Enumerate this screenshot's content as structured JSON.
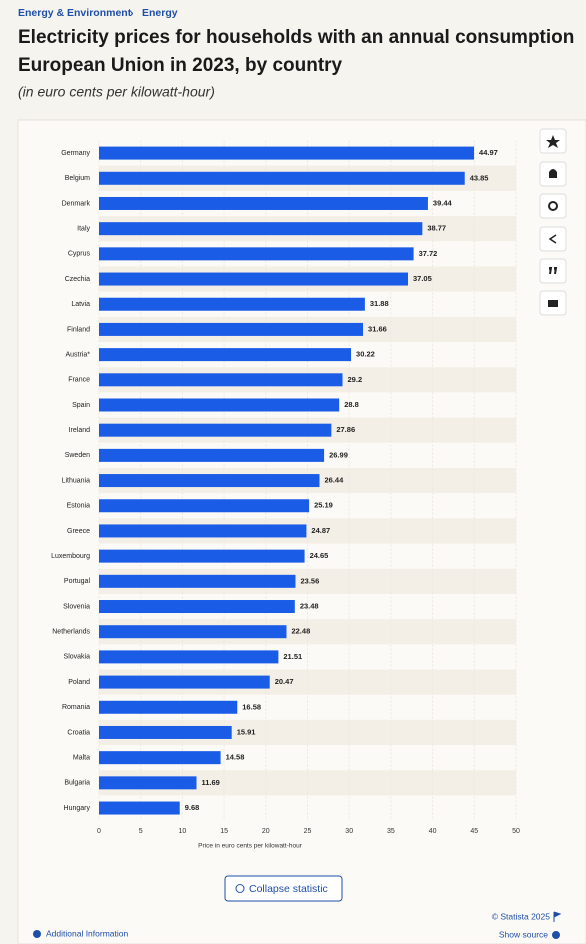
{
  "breadcrumb": [
    "Energy & Environment",
    "Energy"
  ],
  "chart_data": {
    "type": "bar",
    "orientation": "horizontal",
    "title_lines": [
      "Electricity prices for households with an annual consumption",
      "European Union in 2023, by country"
    ],
    "subtitle": "(in euro cents per kilowatt-hour)",
    "x_label": "Price in euro cents per kilowatt-hour",
    "categories": [
      "Germany",
      "Belgium",
      "Denmark",
      "Italy",
      "Cyprus",
      "Czechia",
      "Latvia",
      "Finland",
      "Austria*",
      "France",
      "Spain",
      "Ireland",
      "Sweden",
      "Lithuania",
      "Estonia",
      "Greece",
      "Luxembourg",
      "Portugal",
      "Slovenia",
      "Netherlands",
      "Slovakia",
      "Poland",
      "Romania",
      "Croatia",
      "Malta",
      "Bulgaria",
      "Hungary"
    ],
    "values": [
      44.97,
      43.85,
      39.44,
      38.77,
      37.72,
      37.05,
      31.88,
      31.66,
      30.22,
      29.2,
      28.8,
      27.86,
      26.99,
      26.44,
      25.19,
      24.87,
      24.65,
      23.56,
      23.48,
      22.48,
      21.51,
      20.47,
      16.58,
      15.91,
      14.58,
      11.69,
      9.68
    ],
    "color": "#1a5ce6",
    "xlim": [
      0,
      50
    ],
    "xticks": [
      0,
      5,
      10,
      15,
      20,
      25,
      30,
      35,
      40,
      45,
      50
    ]
  },
  "button": "Collapse statistic",
  "footer": {
    "copyright": "© Statista 2025",
    "source": "Show source",
    "info": "Additional Information"
  }
}
